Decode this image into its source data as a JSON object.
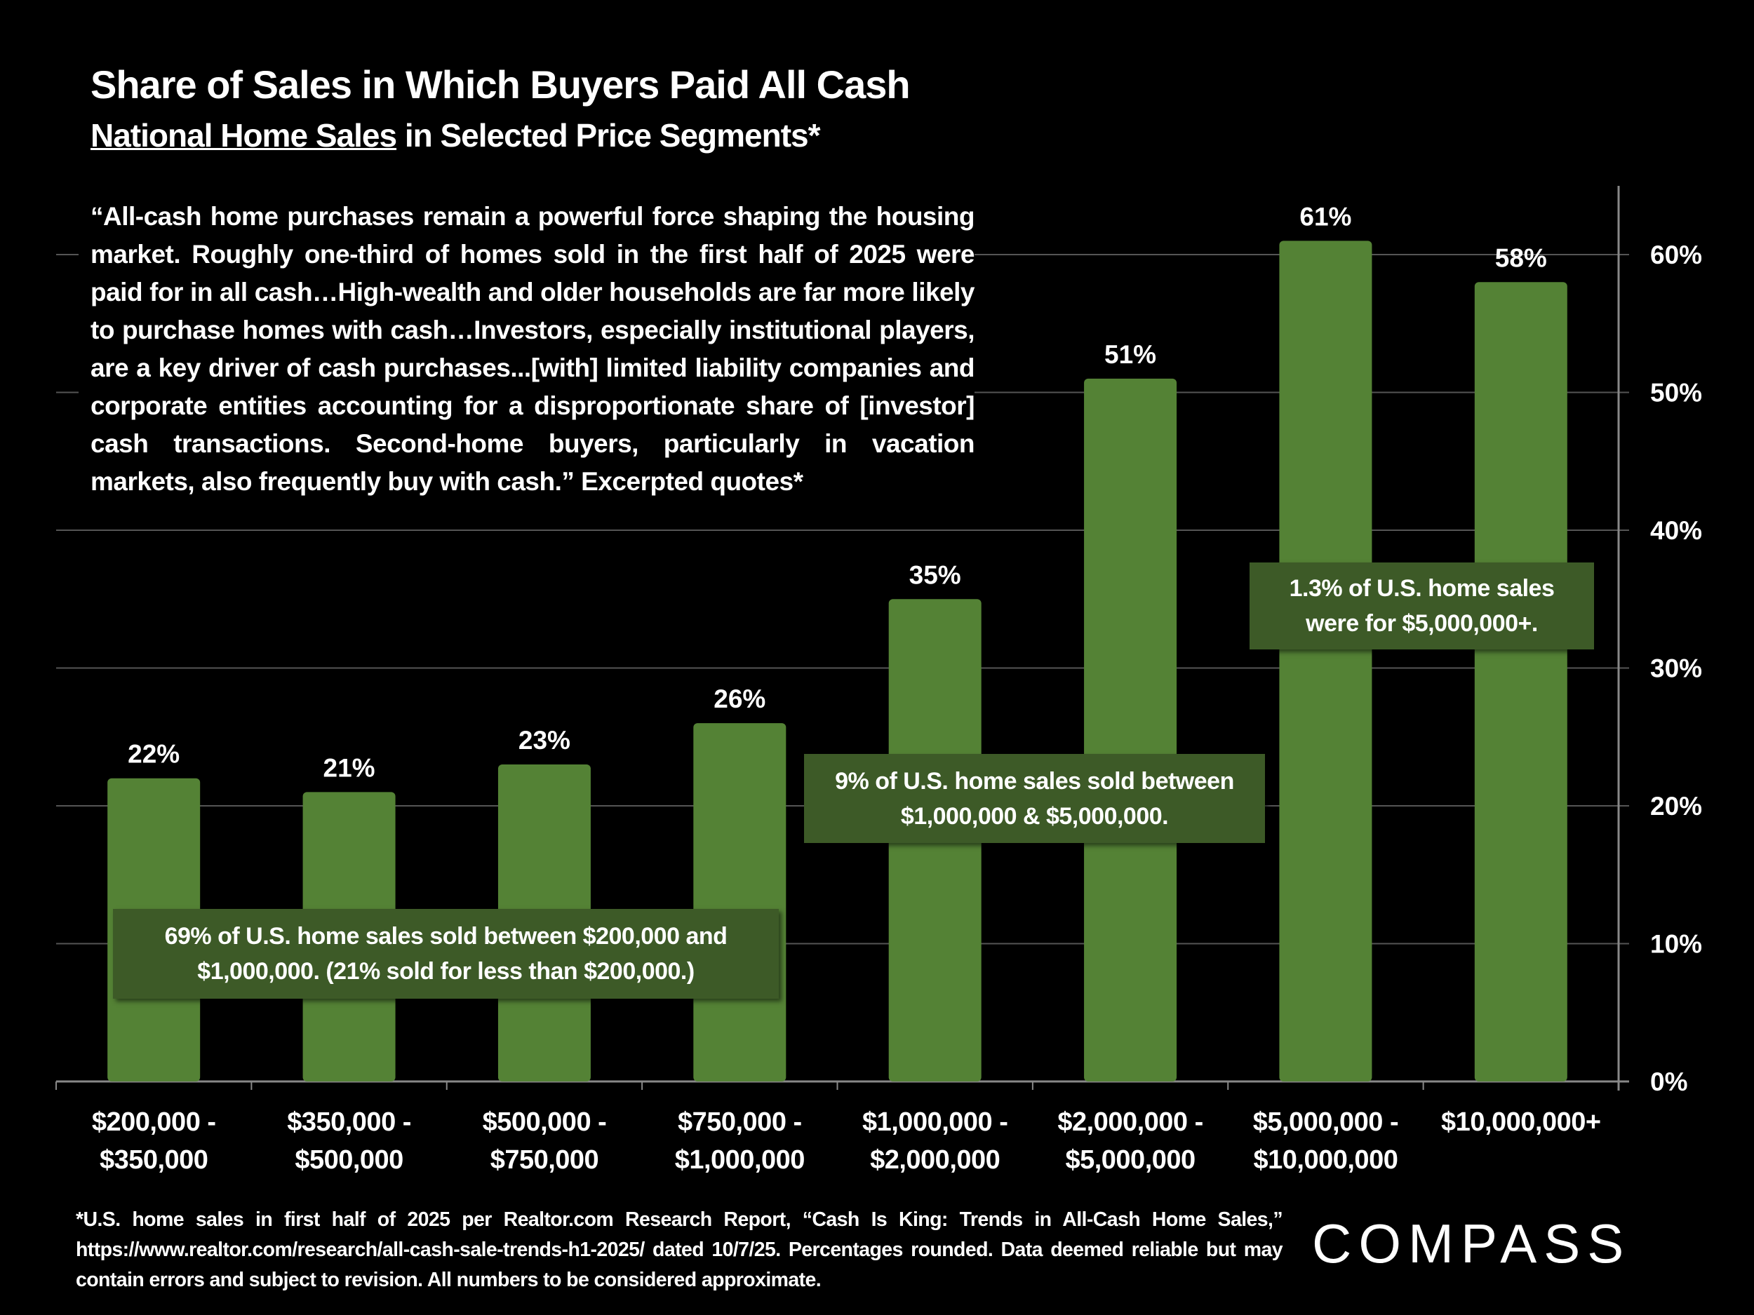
{
  "title": "Share of Sales in Which Buyers Paid All Cash",
  "subtitle": {
    "underlined": "National Home Sales",
    "rest": " in Selected Price Segments*"
  },
  "quote": "“All-cash home purchases remain a powerful force shaping the housing market. Roughly one-third of homes sold in the first half of 2025 were paid for in all cash…High-wealth and older households are far more likely to purchase homes with cash…Investors, especially institutional players, are a key driver of cash purchases...[with] limited liability companies and corporate entities accounting for a disproportionate share of [investor] cash transactions. Second-home buyers, particularly in vacation markets, also frequently buy with cash.” Excerpted quotes*",
  "annotations": [
    "69% of U.S. home sales sold between $200,000 and $1,000,000. (21% sold for less than $200,000.)",
    "9% of U.S. home sales sold between $1,000,000 & $5,000,000.",
    "1.3% of U.S. home sales were for  $5,000,000+."
  ],
  "footnote": "*U.S. home sales in first half of 2025 per Realtor.com Research Report, “Cash Is King: Trends in All-Cash Home Sales,” https://www.realtor.com/research/all-cash-sale-trends-h1-2025/ dated 10/7/25. Percentages rounded. Data deemed reliable but may contain errors and subject to revision. All numbers to be considered approximate.",
  "logo": "COMPASS",
  "chart_data": {
    "type": "bar",
    "title": "Share of Sales in Which Buyers Paid All Cash",
    "categories": [
      [
        "$200,000 -",
        "$350,000"
      ],
      [
        "$350,000 -",
        "$500,000"
      ],
      [
        "$500,000 -",
        "$750,000"
      ],
      [
        "$750,000 -",
        "$1,000,000"
      ],
      [
        "$1,000,000 -",
        "$2,000,000"
      ],
      [
        "$2,000,000 -",
        "$5,000,000"
      ],
      [
        "$5,000,000 -",
        "$10,000,000"
      ],
      [
        "$10,000,000+"
      ]
    ],
    "values": [
      22,
      21,
      23,
      26,
      35,
      51,
      61,
      58
    ],
    "data_labels": [
      "22%",
      "21%",
      "23%",
      "26%",
      "35%",
      "51%",
      "61%",
      "58%"
    ],
    "ylim": [
      0,
      65
    ],
    "yticks": [
      0,
      10,
      20,
      30,
      40,
      50,
      60
    ],
    "ytick_labels": [
      "0%",
      "10%",
      "20%",
      "30%",
      "40%",
      "50%",
      "60%"
    ],
    "y_axis_side": "right",
    "grid": true,
    "bar_color": "#548235"
  }
}
